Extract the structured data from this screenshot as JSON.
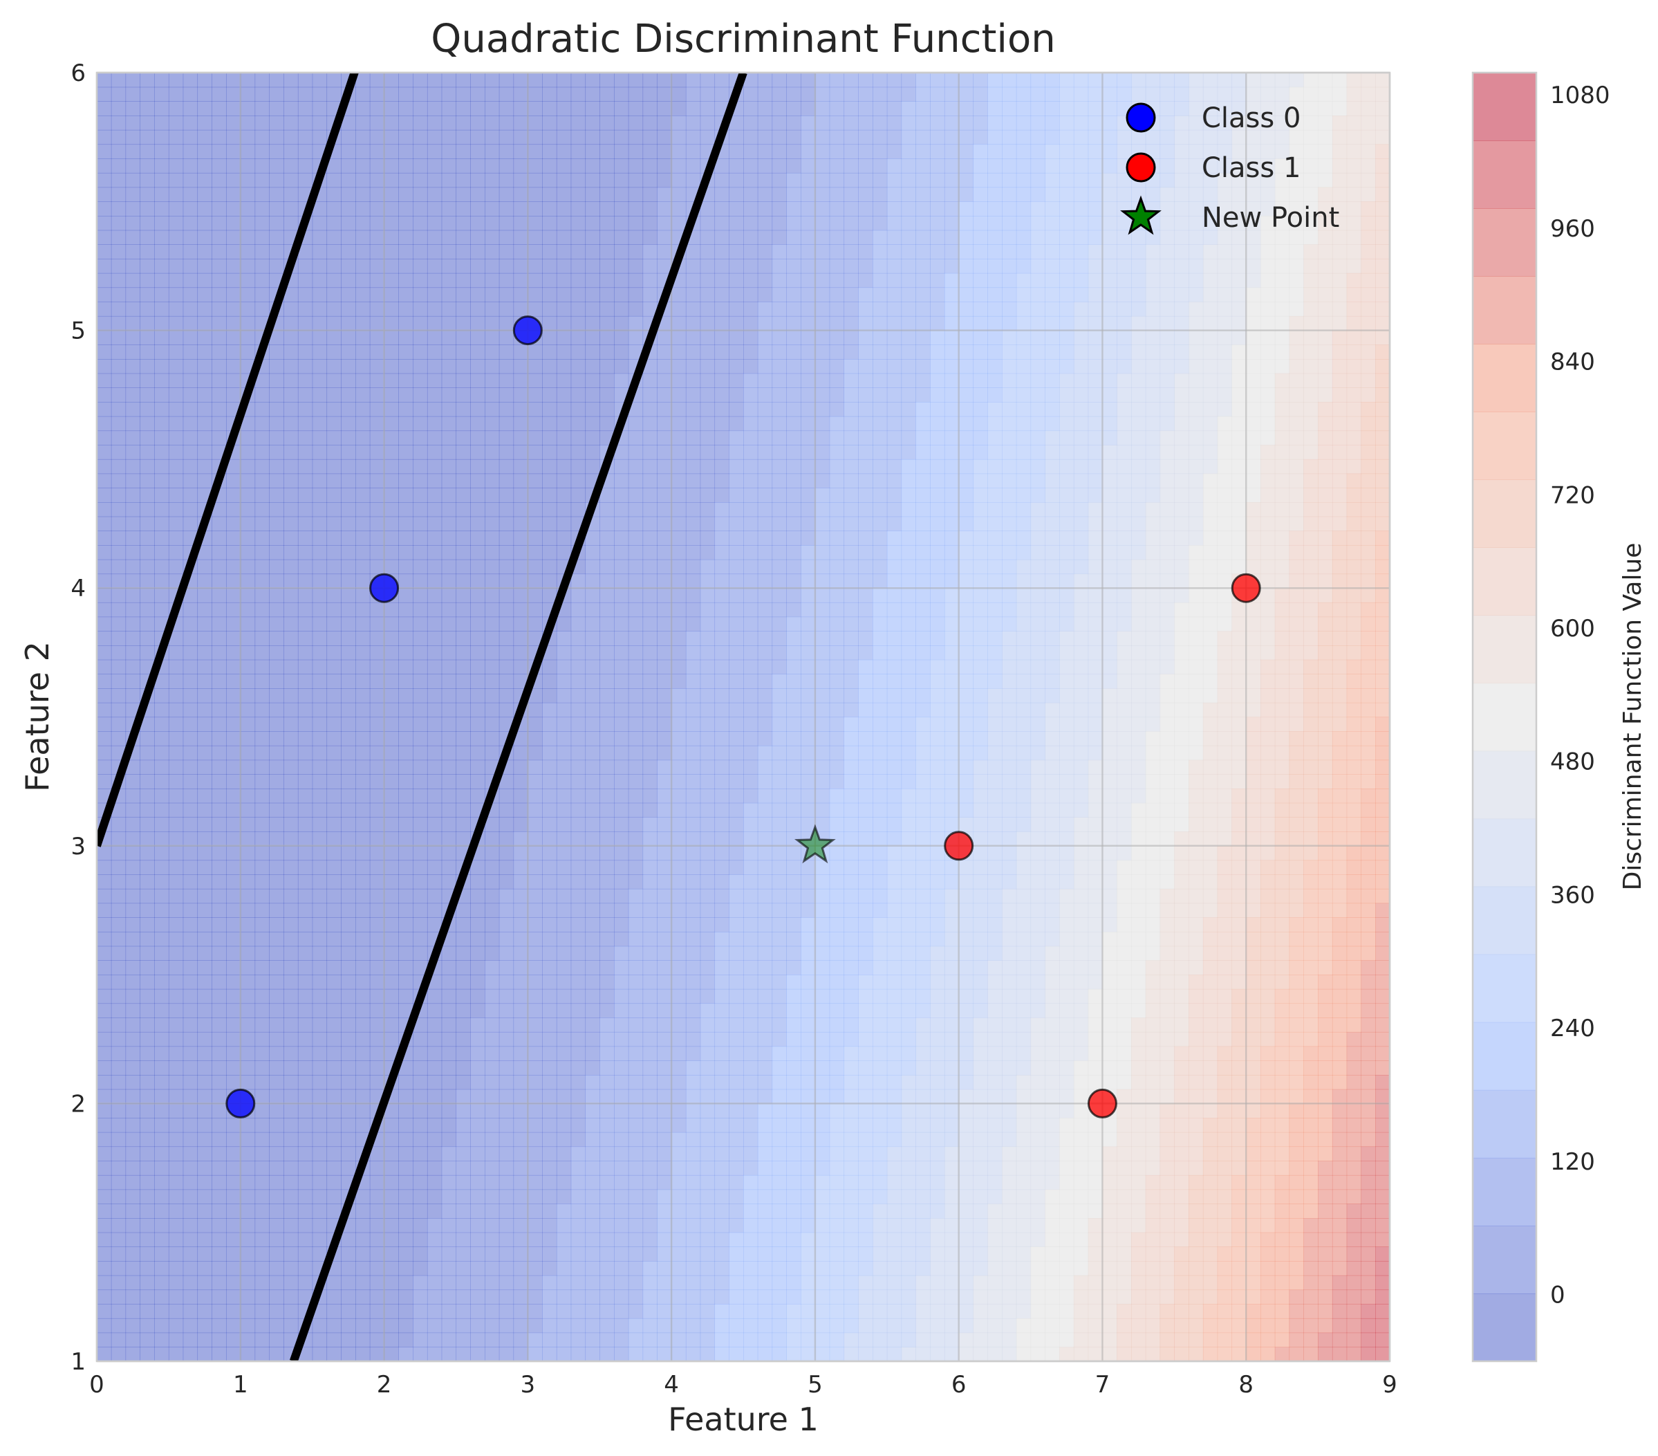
{
  "chart_data": {
    "type": "contour",
    "title": "Quadratic Discriminant Function",
    "xlabel": "Feature 1",
    "ylabel": "Feature 2",
    "xlim": [
      0,
      9
    ],
    "ylim": [
      1,
      6
    ],
    "xticks": [
      "0",
      "1",
      "2",
      "3",
      "4",
      "5",
      "6",
      "7",
      "8",
      "9"
    ],
    "yticks": [
      "1",
      "2",
      "3",
      "4",
      "5",
      "6"
    ],
    "grid": true,
    "colorbar": {
      "label": "Discriminant Function Value",
      "ticks": [
        "0",
        "120",
        "240",
        "360",
        "480",
        "600",
        "720",
        "840",
        "960",
        "1080"
      ],
      "range": [
        -60,
        1100
      ],
      "levels": 19,
      "colormap": "coolwarm",
      "alpha": 0.5
    },
    "decision_boundary": [
      {
        "x": [
          0,
          2.87
        ],
        "y": [
          3,
          7.8
        ]
      },
      {
        "x": [
          1.37,
          4.5
        ],
        "y": [
          1,
          6
        ]
      }
    ],
    "series": [
      {
        "name": "Class 0",
        "marker": "circle",
        "color": "#0000ff",
        "points": [
          {
            "x": 1,
            "y": 2
          },
          {
            "x": 2,
            "y": 4
          },
          {
            "x": 3,
            "y": 5
          }
        ]
      },
      {
        "name": "Class 1",
        "marker": "circle",
        "color": "#ff0000",
        "points": [
          {
            "x": 6,
            "y": 3
          },
          {
            "x": 7,
            "y": 2
          },
          {
            "x": 8,
            "y": 4
          }
        ]
      },
      {
        "name": "New Point",
        "marker": "star",
        "color": "#008000",
        "points": [
          {
            "x": 5,
            "y": 3
          }
        ]
      }
    ],
    "legend": {
      "position": "top-right"
    }
  }
}
